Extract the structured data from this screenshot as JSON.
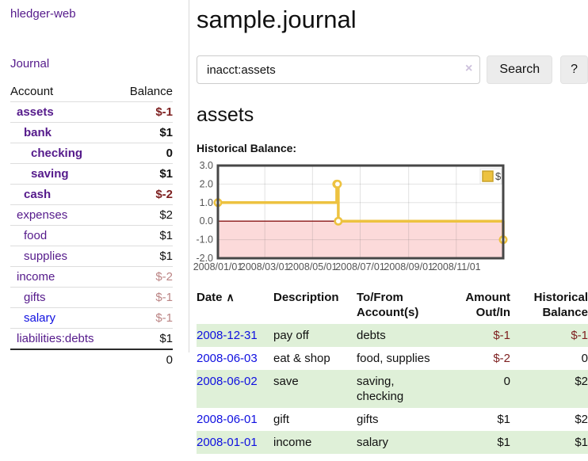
{
  "app": {
    "title": "hledger-web",
    "nav": {
      "journal": "Journal"
    }
  },
  "sidebar": {
    "headers": [
      "Account",
      "Balance"
    ],
    "rows": [
      {
        "account": "assets",
        "balance": "$-1",
        "indent": 0,
        "bold": true,
        "balance_style": "neg-strong",
        "link_style": ""
      },
      {
        "account": "bank",
        "balance": "$1",
        "indent": 1,
        "bold": true,
        "balance_style": "",
        "link_style": ""
      },
      {
        "account": "checking",
        "balance": "0",
        "indent": 2,
        "bold": true,
        "balance_style": "",
        "link_style": ""
      },
      {
        "account": "saving",
        "balance": "$1",
        "indent": 2,
        "bold": true,
        "balance_style": "",
        "link_style": ""
      },
      {
        "account": "cash",
        "balance": "$-2",
        "indent": 1,
        "bold": true,
        "balance_style": "neg-strong",
        "link_style": ""
      },
      {
        "account": "expenses",
        "balance": "$2",
        "indent": 0,
        "bold": false,
        "balance_style": "",
        "link_style": ""
      },
      {
        "account": "food",
        "balance": "$1",
        "indent": 1,
        "bold": false,
        "balance_style": "",
        "link_style": ""
      },
      {
        "account": "supplies",
        "balance": "$1",
        "indent": 1,
        "bold": false,
        "balance_style": "",
        "link_style": ""
      },
      {
        "account": "income",
        "balance": "$-2",
        "indent": 0,
        "bold": false,
        "balance_style": "neg-muted",
        "link_style": ""
      },
      {
        "account": "gifts",
        "balance": "$-1",
        "indent": 1,
        "bold": false,
        "balance_style": "neg-muted",
        "link_style": ""
      },
      {
        "account": "salary",
        "balance": "$-1",
        "indent": 1,
        "bold": false,
        "balance_style": "neg-muted",
        "link_style": "blue"
      },
      {
        "account": "liabilities:debts",
        "balance": "$1",
        "indent": 0,
        "bold": false,
        "balance_style": "",
        "link_style": ""
      }
    ],
    "total": "0"
  },
  "main": {
    "title": "sample.journal",
    "search": {
      "value": "inacct:assets",
      "clear_icon": "×",
      "search_label": "Search",
      "help_label": "?"
    },
    "account_heading": "assets",
    "chart_title": "Historical Balance:"
  },
  "chart_data": {
    "type": "line",
    "step": true,
    "title": "Historical Balance",
    "series": [
      {
        "name": "$",
        "color": "#edc240",
        "points": [
          [
            "2008-01-01",
            1
          ],
          [
            "2008-06-01",
            2
          ],
          [
            "2008-06-02",
            2
          ],
          [
            "2008-06-03",
            0
          ],
          [
            "2008-12-31",
            -1
          ]
        ]
      }
    ],
    "ylim": [
      -2,
      3
    ],
    "yticks": [
      "3.0",
      "2.0",
      "1.0",
      "0.0",
      "-1.0",
      "-2.0"
    ],
    "xticks": [
      "2008/01/01",
      "2008/03/01",
      "2008/05/01",
      "2008/07/01",
      "2008/09/01",
      "2008/11/01"
    ],
    "legend_position": "top-right",
    "grid": true,
    "colors": {
      "plot_border": "#474747",
      "gridline": "rgba(110,110,110,0.20)",
      "negative_region": "#fcdada",
      "zero_line": "#8b1717",
      "axis_text": "#545454",
      "point_fill": "#fffefa"
    }
  },
  "register": {
    "sort_icon": "∧",
    "headers": [
      "Date",
      "Description",
      "To/From Account(s)",
      "Amount Out/In",
      "Historical Balance"
    ],
    "rows": [
      {
        "date": "2008-12-31",
        "description": "pay off",
        "accounts": "debts",
        "amount": "$-1",
        "balance": "$-1"
      },
      {
        "date": "2008-06-03",
        "description": "eat & shop",
        "accounts": "food, supplies",
        "amount": "$-2",
        "balance": "0"
      },
      {
        "date": "2008-06-02",
        "description": "save",
        "accounts": "saving, checking",
        "amount": "0",
        "balance": "$2"
      },
      {
        "date": "2008-06-01",
        "description": "gift",
        "accounts": "gifts",
        "amount": "$1",
        "balance": "$2"
      },
      {
        "date": "2008-01-01",
        "description": "income",
        "accounts": "salary",
        "amount": "$1",
        "balance": "$1"
      }
    ]
  }
}
